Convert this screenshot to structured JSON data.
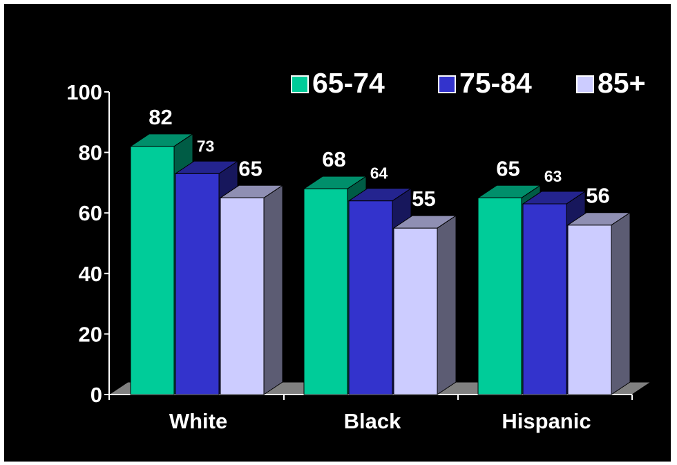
{
  "chart_data": {
    "type": "bar",
    "categories": [
      "White",
      "Black",
      "Hispanic"
    ],
    "series": [
      {
        "name": "65-74",
        "values": [
          82,
          68,
          65
        ],
        "color": "#00CC99"
      },
      {
        "name": "75-84",
        "values": [
          73,
          64,
          63
        ],
        "color": "#3333CC"
      },
      {
        "name": "85+",
        "values": [
          65,
          55,
          56
        ],
        "color": "#CCCCFF"
      }
    ],
    "ylim": [
      0,
      100
    ],
    "yticks": [
      "0",
      "20",
      "40",
      "60",
      "80",
      "100"
    ],
    "legend_position": "top-right",
    "grid": false,
    "style": "3d-bar",
    "background": "#000000"
  }
}
